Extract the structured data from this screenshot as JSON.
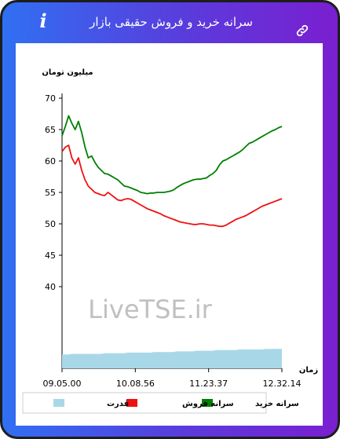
{
  "header": {
    "title": "سرانه خرید و فروش حقیقی بازار",
    "info_icon": "info-icon",
    "link_icon": "link-icon"
  },
  "watermark": "LiveTSE.ir",
  "colors": {
    "buy": "#008000",
    "sell": "#ee1111",
    "power": "#a8d8e8",
    "frame_start": "#3070f2",
    "frame_end": "#7a1fd0"
  },
  "chart_data": {
    "type": "line",
    "ylabel": "میلیون تومان",
    "xlabel": "زمان",
    "ylim": [
      27,
      71
    ],
    "yticks": [
      40,
      45,
      50,
      55,
      60,
      65,
      70
    ],
    "xticks": [
      "09.05.00",
      "10.08.56",
      "11.23.37",
      "12.32.14"
    ],
    "x_count": 68,
    "series": [
      {
        "name": "سرانه خرید",
        "color": "#008000",
        "values": [
          64.0,
          65.5,
          67.2,
          66.0,
          65.0,
          66.3,
          64.5,
          62.2,
          60.5,
          60.8,
          59.8,
          59.0,
          58.5,
          58.0,
          57.9,
          57.6,
          57.3,
          57.0,
          56.5,
          56.0,
          55.9,
          55.7,
          55.5,
          55.3,
          55.0,
          54.9,
          54.8,
          54.9,
          54.9,
          55.0,
          55.0,
          55.0,
          55.1,
          55.2,
          55.4,
          55.8,
          56.1,
          56.4,
          56.6,
          56.8,
          57.0,
          57.1,
          57.1,
          57.2,
          57.3,
          57.7,
          58.0,
          58.5,
          59.4,
          60.0,
          60.2,
          60.5,
          60.8,
          61.1,
          61.4,
          61.8,
          62.3,
          62.8,
          63.0,
          63.3,
          63.6,
          63.9,
          64.2,
          64.5,
          64.8,
          65.0,
          65.3,
          65.5
        ]
      },
      {
        "name": "سرانه فروش",
        "color": "#ee1111",
        "values": [
          61.5,
          62.2,
          62.5,
          60.5,
          59.5,
          60.5,
          58.5,
          57.0,
          56.0,
          55.5,
          55.0,
          54.8,
          54.6,
          54.5,
          55.0,
          54.6,
          54.2,
          53.8,
          53.7,
          53.9,
          54.0,
          53.9,
          53.6,
          53.3,
          53.0,
          52.7,
          52.4,
          52.2,
          52.0,
          51.8,
          51.6,
          51.3,
          51.1,
          50.9,
          50.7,
          50.5,
          50.3,
          50.2,
          50.1,
          50.0,
          49.9,
          49.9,
          50.0,
          50.0,
          49.9,
          49.8,
          49.8,
          49.7,
          49.6,
          49.6,
          49.8,
          50.1,
          50.4,
          50.7,
          50.9,
          51.1,
          51.3,
          51.6,
          51.9,
          52.2,
          52.5,
          52.8,
          53.0,
          53.2,
          53.4,
          53.6,
          53.8,
          54.0
        ]
      },
      {
        "name": "قدرت",
        "color": "#a8d8e8",
        "values": [
          29.2,
          29.2,
          29.2,
          29.3,
          29.3,
          29.3,
          29.3,
          29.3,
          29.3,
          29.3,
          29.3,
          29.3,
          29.3,
          29.4,
          29.4,
          29.4,
          29.4,
          29.4,
          29.4,
          29.4,
          29.5,
          29.5,
          29.5,
          29.5,
          29.5,
          29.5,
          29.5,
          29.5,
          29.6,
          29.6,
          29.6,
          29.6,
          29.6,
          29.6,
          29.6,
          29.7,
          29.7,
          29.7,
          29.7,
          29.7,
          29.7,
          29.8,
          29.8,
          29.8,
          29.8,
          29.8,
          29.8,
          29.9,
          29.9,
          29.9,
          29.9,
          29.9,
          29.9,
          29.9,
          30.0,
          30.0,
          30.0,
          30.0,
          30.0,
          30.0,
          30.0,
          30.0,
          30.1,
          30.1,
          30.1,
          30.1,
          30.1,
          30.1
        ]
      }
    ],
    "legend": [
      "سرانه خرید",
      "سرانه فروش",
      "قدرت"
    ],
    "legend_position": "bottom"
  }
}
